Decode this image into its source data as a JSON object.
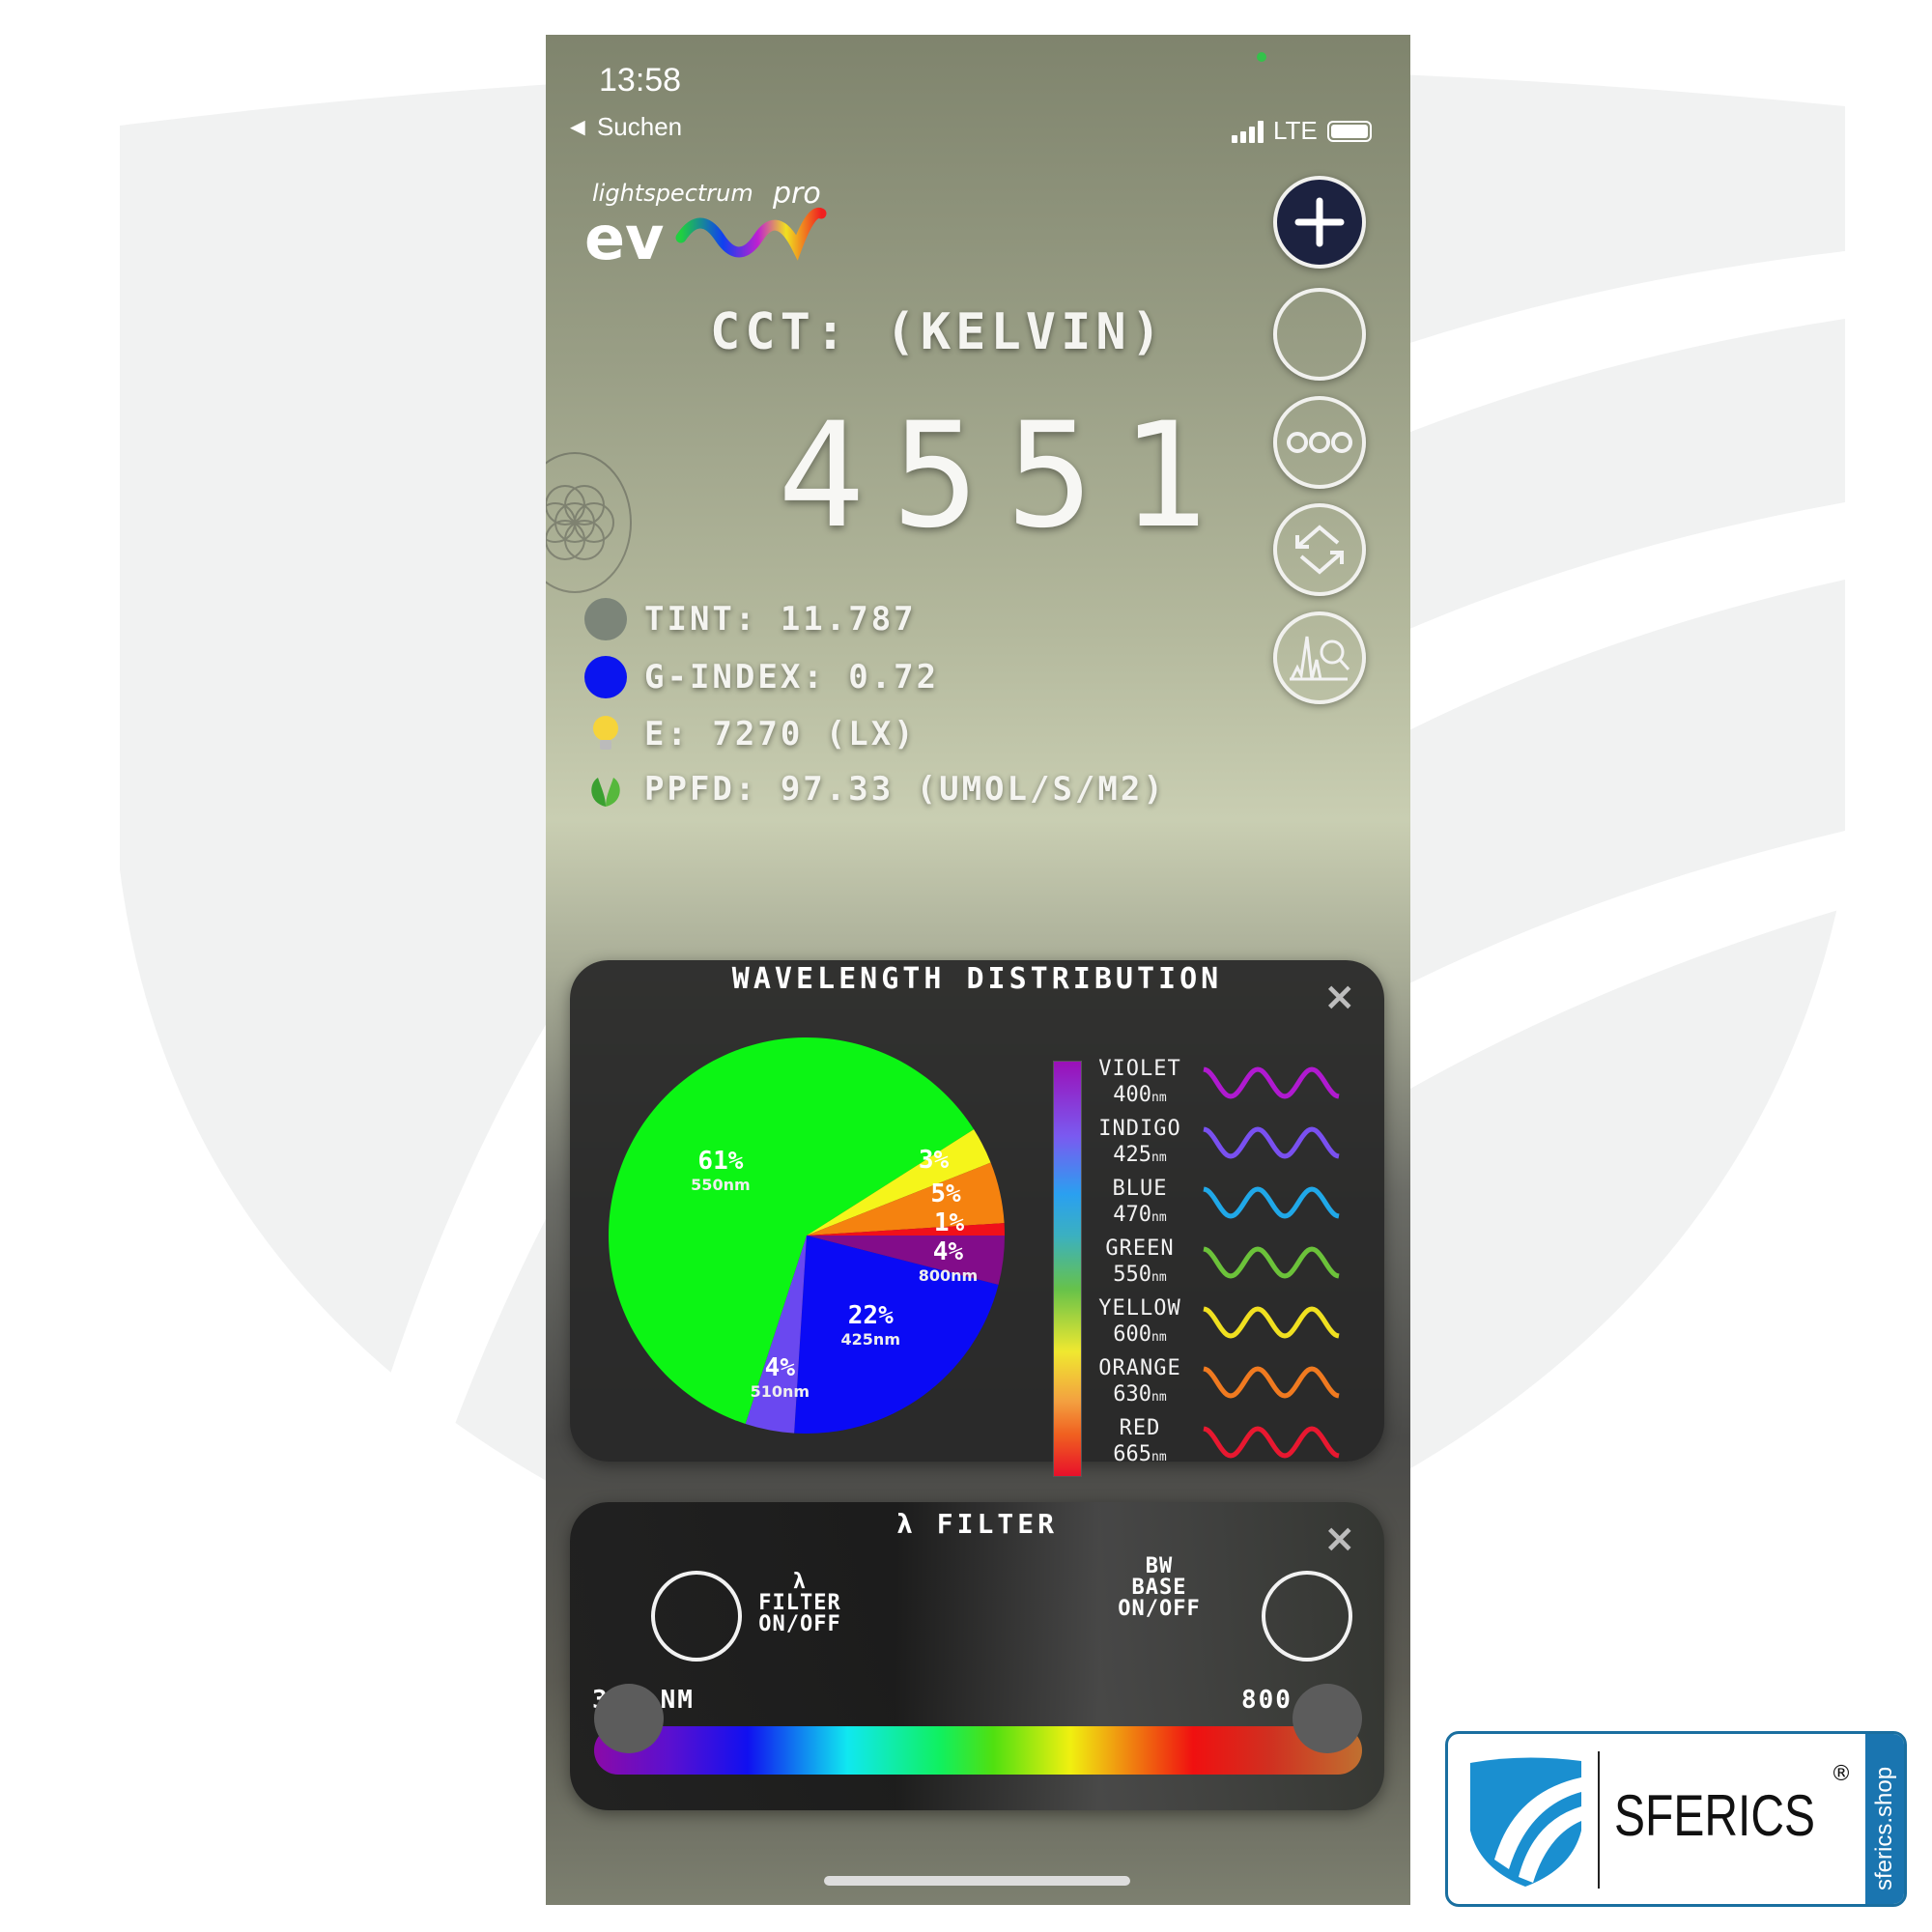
{
  "status_bar": {
    "time": "13:58",
    "back_label": "◄ Suchen",
    "network": "LTE",
    "battery_level": 0.9
  },
  "app": {
    "logo_text": "lightspectrum pro evo",
    "cct_label": "CCT: (KELVIN)",
    "cct_value": "4551",
    "metrics": [
      {
        "label": "TINT: 11.787",
        "icon": "grey-dot-icon",
        "color": "#7c8579"
      },
      {
        "label": "G-INDEX: 0.72",
        "icon": "blue-dot-icon",
        "color": "#0a14f0"
      },
      {
        "label": "E: 7270 (LX)",
        "icon": "lightbulb-icon"
      },
      {
        "label": "PPFD: 97.33 (UMOL/S/M2)",
        "icon": "leaf-icon"
      }
    ],
    "side_buttons": [
      {
        "name": "add-button",
        "icon": "plus-icon"
      },
      {
        "name": "record-button",
        "icon": "circle-icon"
      },
      {
        "name": "more-button",
        "icon": "dots-icon"
      },
      {
        "name": "rotate-button",
        "icon": "rotate-arrows-icon"
      },
      {
        "name": "spectrum-analysis-button",
        "icon": "spectrum-magnifier-icon"
      }
    ]
  },
  "chart_data": {
    "type": "pie",
    "title": "WAVELENGTH DISTRIBUTION",
    "slices": [
      {
        "percent_label": "4%",
        "value": 4,
        "nm_label": "800nm",
        "color": "#820c8a"
      },
      {
        "percent_label": "22%",
        "value": 22,
        "nm_label": "425nm",
        "color": "#0a0af5"
      },
      {
        "percent_label": "4%",
        "value": 4,
        "nm_label": "510nm",
        "color": "#6a48f0"
      },
      {
        "percent_label": "61%",
        "value": 61,
        "nm_label": "550nm",
        "color": "#0cf514"
      },
      {
        "percent_label": "3%",
        "value": 3,
        "nm_label": "",
        "color": "#f5f51a"
      },
      {
        "percent_label": "5%",
        "value": 5,
        "nm_label": "",
        "color": "#f5820f"
      },
      {
        "percent_label": "1%",
        "value": 1,
        "nm_label": "",
        "color": "#f0101a"
      }
    ],
    "legend": [
      {
        "name": "VIOLET",
        "nm": "400",
        "unit": "nm",
        "color": "#b01ad0"
      },
      {
        "name": "INDIGO",
        "nm": "425",
        "unit": "nm",
        "color": "#7a50f0"
      },
      {
        "name": "BLUE",
        "nm": "470",
        "unit": "nm",
        "color": "#20a8e8"
      },
      {
        "name": "GREEN",
        "nm": "550",
        "unit": "nm",
        "color": "#6cc23a"
      },
      {
        "name": "YELLOW",
        "nm": "600",
        "unit": "nm",
        "color": "#f0e020"
      },
      {
        "name": "ORANGE",
        "nm": "630",
        "unit": "nm",
        "color": "#f07a20"
      },
      {
        "name": "RED",
        "nm": "665",
        "unit": "nm",
        "color": "#e81830"
      }
    ],
    "legend_placement": "right"
  },
  "filter": {
    "title": "λ FILTER",
    "filter_toggle_label": [
      "λ",
      "FILTER",
      "ON/OFF"
    ],
    "bw_toggle_label": [
      "BW",
      "BASE",
      "ON/OFF"
    ],
    "min_label": "360 NM",
    "max_label": "800 NM",
    "range_nm": [
      360,
      800
    ]
  },
  "close_label": "×",
  "brand": {
    "name": "SFERICS",
    "registered": "®",
    "domain": "sferics.shop"
  }
}
